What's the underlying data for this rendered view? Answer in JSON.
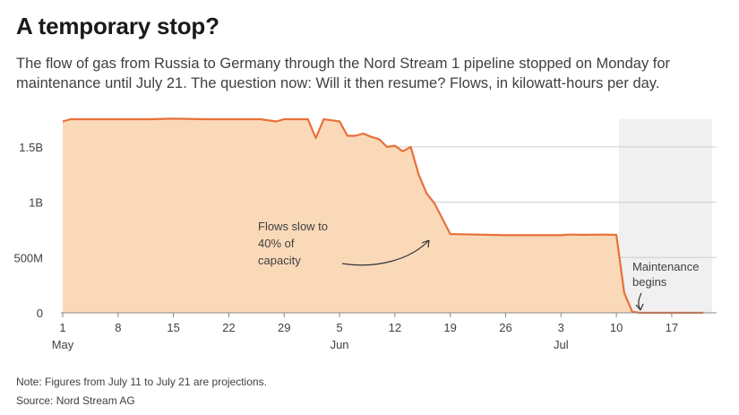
{
  "title": "A temporary stop?",
  "subtitle": "The flow of gas from Russia to Germany through the Nord Stream 1 pipeline stopped on Monday for maintenance until July 21. The question now: Will it then resume? Flows, in kilowatt-hours per day.",
  "notes": {
    "note": "Note: Figures from July 11 to July 21 are projections.",
    "source": "Source: Nord Stream AG"
  },
  "colors": {
    "line": "#e8703a",
    "fill": "#fad9b9",
    "shade": "#f0f0f0",
    "grid": "#cccccc",
    "text": "#404040"
  },
  "chart_data": {
    "type": "area",
    "title": "A temporary stop?",
    "xlabel": "",
    "ylabel": "",
    "unit": "kilowatt-hours per day",
    "xlim": [
      "2022-05-01",
      "2022-07-21"
    ],
    "ylim": [
      0,
      1750000000
    ],
    "grid": true,
    "y_ticks": [
      {
        "value": 0,
        "label": "0"
      },
      {
        "value": 500000000,
        "label": "500M"
      },
      {
        "value": 1000000000,
        "label": "1B"
      },
      {
        "value": 1500000000,
        "label": "1.5B"
      }
    ],
    "x_ticks": [
      {
        "date": "2022-05-01",
        "label": "1",
        "month": "May"
      },
      {
        "date": "2022-05-08",
        "label": "8"
      },
      {
        "date": "2022-05-15",
        "label": "15"
      },
      {
        "date": "2022-05-22",
        "label": "22"
      },
      {
        "date": "2022-05-29",
        "label": "29"
      },
      {
        "date": "2022-06-05",
        "label": "5",
        "month": "Jun"
      },
      {
        "date": "2022-06-12",
        "label": "12"
      },
      {
        "date": "2022-06-19",
        "label": "19"
      },
      {
        "date": "2022-06-26",
        "label": "26"
      },
      {
        "date": "2022-07-03",
        "label": "3",
        "month": "Jul"
      },
      {
        "date": "2022-07-10",
        "label": "10"
      },
      {
        "date": "2022-07-17",
        "label": "17"
      }
    ],
    "shaded_range": {
      "start": "2022-07-11",
      "end": "2022-07-21"
    },
    "series": [
      {
        "x": [
          "2022-05-01",
          "2022-05-02",
          "2022-05-05",
          "2022-05-08",
          "2022-05-12",
          "2022-05-15",
          "2022-05-19",
          "2022-05-22",
          "2022-05-26",
          "2022-05-28",
          "2022-05-29",
          "2022-06-01",
          "2022-06-02",
          "2022-06-03",
          "2022-06-04",
          "2022-06-05",
          "2022-06-06",
          "2022-06-07",
          "2022-06-08",
          "2022-06-09",
          "2022-06-10",
          "2022-06-11",
          "2022-06-12",
          "2022-06-13",
          "2022-06-14",
          "2022-06-15",
          "2022-06-16",
          "2022-06-17",
          "2022-06-19",
          "2022-06-26",
          "2022-07-03",
          "2022-07-04",
          "2022-07-06",
          "2022-07-08",
          "2022-07-10",
          "2022-07-11",
          "2022-07-12",
          "2022-07-13",
          "2022-07-21"
        ],
        "values": [
          1730000000,
          1750000000,
          1750000000,
          1750000000,
          1750000000,
          1755000000,
          1750000000,
          1750000000,
          1750000000,
          1730000000,
          1750000000,
          1750000000,
          1580000000,
          1750000000,
          1740000000,
          1730000000,
          1600000000,
          1600000000,
          1620000000,
          1590000000,
          1570000000,
          1500000000,
          1510000000,
          1460000000,
          1500000000,
          1250000000,
          1080000000,
          990000000,
          712000000,
          702000000,
          702000000,
          707000000,
          705000000,
          707000000,
          705000000,
          180000000,
          10000000,
          0,
          0
        ]
      }
    ],
    "annotations": [
      {
        "text_lines": [
          "Flows slow to",
          "40% of",
          "capacity"
        ],
        "date": "2022-06-16",
        "value": 710000000
      },
      {
        "text_lines": [
          "Maintenance",
          "begins"
        ],
        "date": "2022-07-11",
        "value": 10000000
      }
    ]
  }
}
